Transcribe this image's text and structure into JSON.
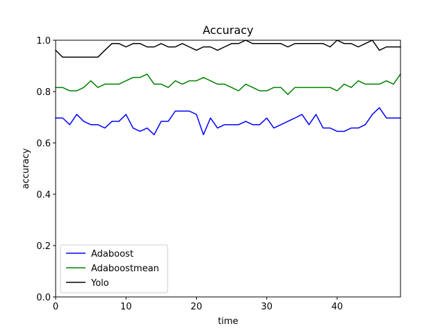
{
  "chart_data": {
    "type": "line",
    "title": "Accuracy",
    "xlabel": "time",
    "ylabel": "accuracy",
    "xlim": [
      0,
      49
    ],
    "ylim": [
      0.0,
      1.0
    ],
    "xticks": [
      0,
      10,
      20,
      30,
      40
    ],
    "xtick_labels": [
      "0",
      "10",
      "20",
      "30",
      "40"
    ],
    "yticks": [
      0.0,
      0.2,
      0.4,
      0.6,
      0.8,
      1.0
    ],
    "ytick_labels": [
      "0.0",
      "0.2",
      "0.4",
      "0.6",
      "0.8",
      "1.0"
    ],
    "grid": false,
    "legend_position": "lower-left",
    "x": [
      0,
      1,
      2,
      3,
      4,
      5,
      6,
      7,
      8,
      9,
      10,
      11,
      12,
      13,
      14,
      15,
      16,
      17,
      18,
      19,
      20,
      21,
      22,
      23,
      24,
      25,
      26,
      27,
      28,
      29,
      30,
      31,
      32,
      33,
      34,
      35,
      36,
      37,
      38,
      39,
      40,
      41,
      42,
      43,
      44,
      45,
      46,
      47,
      48,
      49
    ],
    "series": [
      {
        "name": "Adaboost",
        "color": "#0000ff",
        "values": [
          0.697,
          0.697,
          0.671,
          0.711,
          0.684,
          0.671,
          0.671,
          0.658,
          0.684,
          0.684,
          0.711,
          0.658,
          0.645,
          0.658,
          0.632,
          0.684,
          0.684,
          0.724,
          0.724,
          0.724,
          0.711,
          0.632,
          0.697,
          0.658,
          0.671,
          0.671,
          0.671,
          0.684,
          0.671,
          0.671,
          0.697,
          0.658,
          0.671,
          0.684,
          0.697,
          0.711,
          0.671,
          0.711,
          0.658,
          0.658,
          0.645,
          0.645,
          0.658,
          0.658,
          0.671,
          0.711,
          0.737,
          0.697,
          0.697,
          0.697
        ]
      },
      {
        "name": "Adaboostmean",
        "color": "#008000",
        "values": [
          0.816,
          0.816,
          0.803,
          0.803,
          0.816,
          0.842,
          0.816,
          0.829,
          0.829,
          0.829,
          0.842,
          0.855,
          0.855,
          0.868,
          0.829,
          0.829,
          0.816,
          0.842,
          0.829,
          0.842,
          0.842,
          0.855,
          0.842,
          0.829,
          0.829,
          0.816,
          0.803,
          0.829,
          0.816,
          0.803,
          0.803,
          0.816,
          0.816,
          0.789,
          0.816,
          0.816,
          0.816,
          0.816,
          0.816,
          0.816,
          0.803,
          0.829,
          0.816,
          0.842,
          0.829,
          0.829,
          0.829,
          0.842,
          0.829,
          0.868
        ]
      },
      {
        "name": "Yolo",
        "color": "#000000",
        "values": [
          0.961,
          0.934,
          0.934,
          0.934,
          0.934,
          0.934,
          0.934,
          0.961,
          0.987,
          0.987,
          0.974,
          0.987,
          0.987,
          0.974,
          0.974,
          0.987,
          0.974,
          0.974,
          0.987,
          0.974,
          0.961,
          0.974,
          0.974,
          0.961,
          0.974,
          0.987,
          0.987,
          1.0,
          0.987,
          0.987,
          0.987,
          0.987,
          0.987,
          0.974,
          0.987,
          0.987,
          0.987,
          0.987,
          0.987,
          0.974,
          1.0,
          0.987,
          0.987,
          0.974,
          0.987,
          1.0,
          0.961,
          0.974,
          0.974,
          0.974
        ]
      }
    ]
  }
}
